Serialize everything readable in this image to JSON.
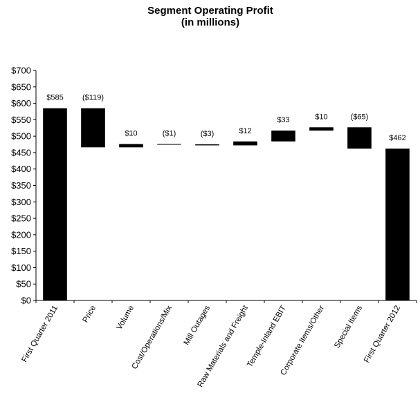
{
  "chart_data": {
    "type": "bar",
    "subtype": "waterfall",
    "title": "Segment Operating Profit",
    "subtitle": "(in millions)",
    "xlabel": "",
    "ylabel": "",
    "ylim": [
      0,
      700
    ],
    "ytick_step": 50,
    "ytick_labels": [
      "$0",
      "$50",
      "$100",
      "$150",
      "$200",
      "$250",
      "$300",
      "$350",
      "$400",
      "$450",
      "$500",
      "$550",
      "$600",
      "$650",
      "$700"
    ],
    "grid": false,
    "categories": [
      "First Quarter 2011",
      "Price",
      "Volume",
      "Cost/Operations/Mix",
      "Mill Outages",
      "Raw Materials and Freight",
      "Temple-Inland EBIT",
      "Corporate Items/Other",
      "Special Items",
      "First Quarter 2012"
    ],
    "bars": [
      {
        "low": 0,
        "high": 585,
        "label": "$585"
      },
      {
        "low": 466,
        "high": 585,
        "label": "($119)"
      },
      {
        "low": 466,
        "high": 476,
        "label": "$10"
      },
      {
        "low": 475,
        "high": 476,
        "label": "($1)"
      },
      {
        "low": 472,
        "high": 475,
        "label": "($3)"
      },
      {
        "low": 472,
        "high": 484,
        "label": "$12"
      },
      {
        "low": 484,
        "high": 517,
        "label": "$33"
      },
      {
        "low": 517,
        "high": 527,
        "label": "$10"
      },
      {
        "low": 462,
        "high": 527,
        "label": "($65)"
      },
      {
        "low": 0,
        "high": 462,
        "label": "$462"
      }
    ],
    "bar_color": "#000000"
  }
}
